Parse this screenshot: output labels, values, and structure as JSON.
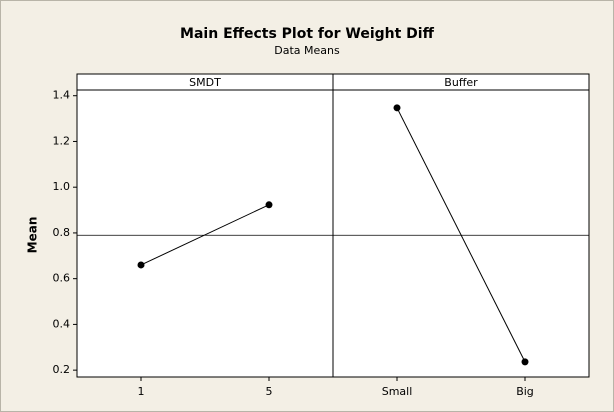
{
  "chart_data": {
    "type": "line",
    "title": "Main Effects Plot for Weight Diff",
    "subtitle": "Data Means",
    "ylabel": "Mean",
    "ylim": [
      0.17,
      1.425
    ],
    "yticks": [
      0.2,
      0.4,
      0.6,
      0.8,
      {
        "value": 1,
        "label": "1.0"
      },
      1.2,
      1.4
    ],
    "reference_line": 0.79,
    "color": "#000000",
    "panels": [
      {
        "name": "SMDT",
        "categories": [
          "1",
          "5"
        ],
        "values": [
          0.66,
          0.923
        ]
      },
      {
        "name": "Buffer",
        "categories": [
          "Small",
          "Big"
        ],
        "values": [
          1.347,
          0.236
        ]
      }
    ]
  }
}
